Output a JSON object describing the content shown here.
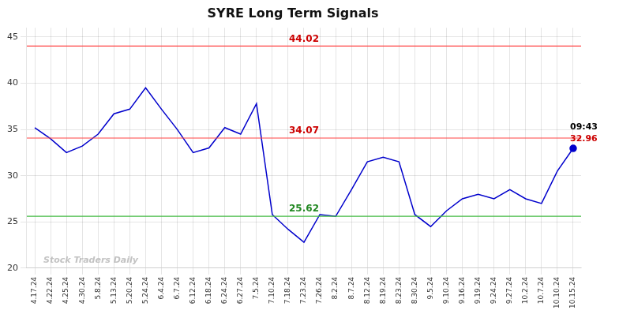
{
  "chart_data": {
    "type": "line",
    "title": "SYRE Long Term Signals",
    "categories": [
      "4.17.24",
      "4.22.24",
      "4.25.24",
      "4.30.24",
      "5.8.24",
      "5.13.24",
      "5.20.24",
      "5.24.24",
      "6.4.24",
      "6.7.24",
      "6.12.24",
      "6.18.24",
      "6.24.24",
      "6.27.24",
      "7.5.24",
      "7.10.24",
      "7.18.24",
      "7.23.24",
      "7.26.24",
      "8.2.24",
      "8.7.24",
      "8.12.24",
      "8.19.24",
      "8.23.24",
      "8.30.24",
      "9.5.24",
      "9.10.24",
      "9.16.24",
      "9.19.24",
      "9.24.24",
      "9.27.24",
      "10.2.24",
      "10.7.24",
      "10.10.24",
      "10.15.24"
    ],
    "values": [
      35.2,
      34.0,
      32.5,
      33.2,
      34.5,
      36.7,
      37.2,
      39.5,
      37.2,
      35.0,
      32.5,
      33.0,
      35.2,
      34.5,
      37.8,
      25.8,
      24.2,
      22.8,
      25.8,
      25.6,
      28.5,
      31.5,
      32.0,
      31.5,
      25.8,
      24.5,
      26.2,
      27.5,
      28.0,
      27.5,
      28.5,
      27.5,
      27.0,
      30.5,
      32.96
    ],
    "color": "#0000cc",
    "ylim": [
      20,
      46
    ],
    "yticks": [
      20,
      25,
      30,
      35,
      40,
      45
    ],
    "grid": true,
    "hlines": [
      {
        "value": 44.02,
        "color": "#ff4444",
        "label": "44.02",
        "label_color": "#cc0000"
      },
      {
        "value": 34.07,
        "color": "#ff4444",
        "label": "34.07",
        "label_color": "#cc0000"
      },
      {
        "value": 25.62,
        "color": "#44bb44",
        "label": "25.62",
        "label_color": "#228822"
      }
    ],
    "last_point_labels": [
      {
        "text": "09:43",
        "color": "#000000"
      },
      {
        "text": "32.96",
        "color": "#cc0000"
      }
    ],
    "watermark": {
      "text": "Stock Traders Daily",
      "color": "#bbbbbb"
    }
  }
}
